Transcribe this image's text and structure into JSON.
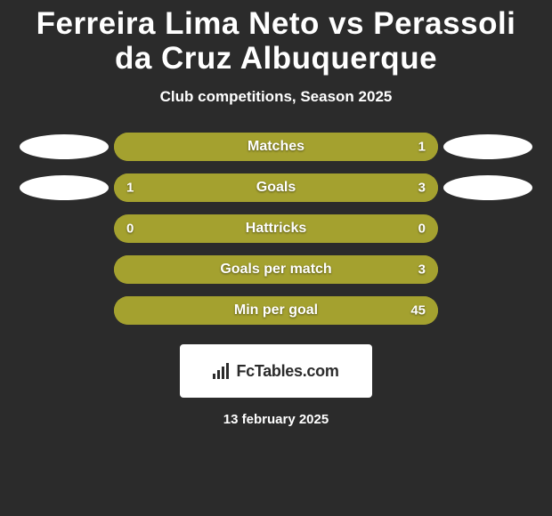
{
  "colors": {
    "background": "#2b2b2b",
    "title": "#ffffff",
    "subtitle": "#ffffff",
    "bar_base": "#a4a12f",
    "fill_left": "#a4a12f",
    "fill_right": "#a4a12f",
    "ellipse": "#ffffff",
    "bar_text": "#ffffff",
    "logo_bg": "#ffffff",
    "date_color": "#ffffff"
  },
  "title": {
    "text": "Ferreira Lima Neto vs Perassoli da Cruz Albuquerque",
    "fontsize": 35
  },
  "subtitle": {
    "text": "Club competitions, Season 2025",
    "fontsize": 17
  },
  "bar_label_fontsize": 16,
  "value_fontsize": 15,
  "stats": [
    {
      "label": "Matches",
      "left_value": "",
      "right_value": "1",
      "left_fill_pct": 0,
      "right_fill_pct": 100,
      "show_left_ellipse": true,
      "show_right_ellipse": true
    },
    {
      "label": "Goals",
      "left_value": "1",
      "right_value": "3",
      "left_fill_pct": 22,
      "right_fill_pct": 78,
      "show_left_ellipse": true,
      "show_right_ellipse": true
    },
    {
      "label": "Hattricks",
      "left_value": "0",
      "right_value": "0",
      "left_fill_pct": 0,
      "right_fill_pct": 0,
      "show_left_ellipse": false,
      "show_right_ellipse": false
    },
    {
      "label": "Goals per match",
      "left_value": "",
      "right_value": "3",
      "left_fill_pct": 0,
      "right_fill_pct": 100,
      "show_left_ellipse": false,
      "show_right_ellipse": false
    },
    {
      "label": "Min per goal",
      "left_value": "",
      "right_value": "45",
      "left_fill_pct": 0,
      "right_fill_pct": 100,
      "show_left_ellipse": false,
      "show_right_ellipse": false
    }
  ],
  "logo": {
    "text": "FcTables.com"
  },
  "date": {
    "text": "13 february 2025",
    "fontsize": 15
  }
}
